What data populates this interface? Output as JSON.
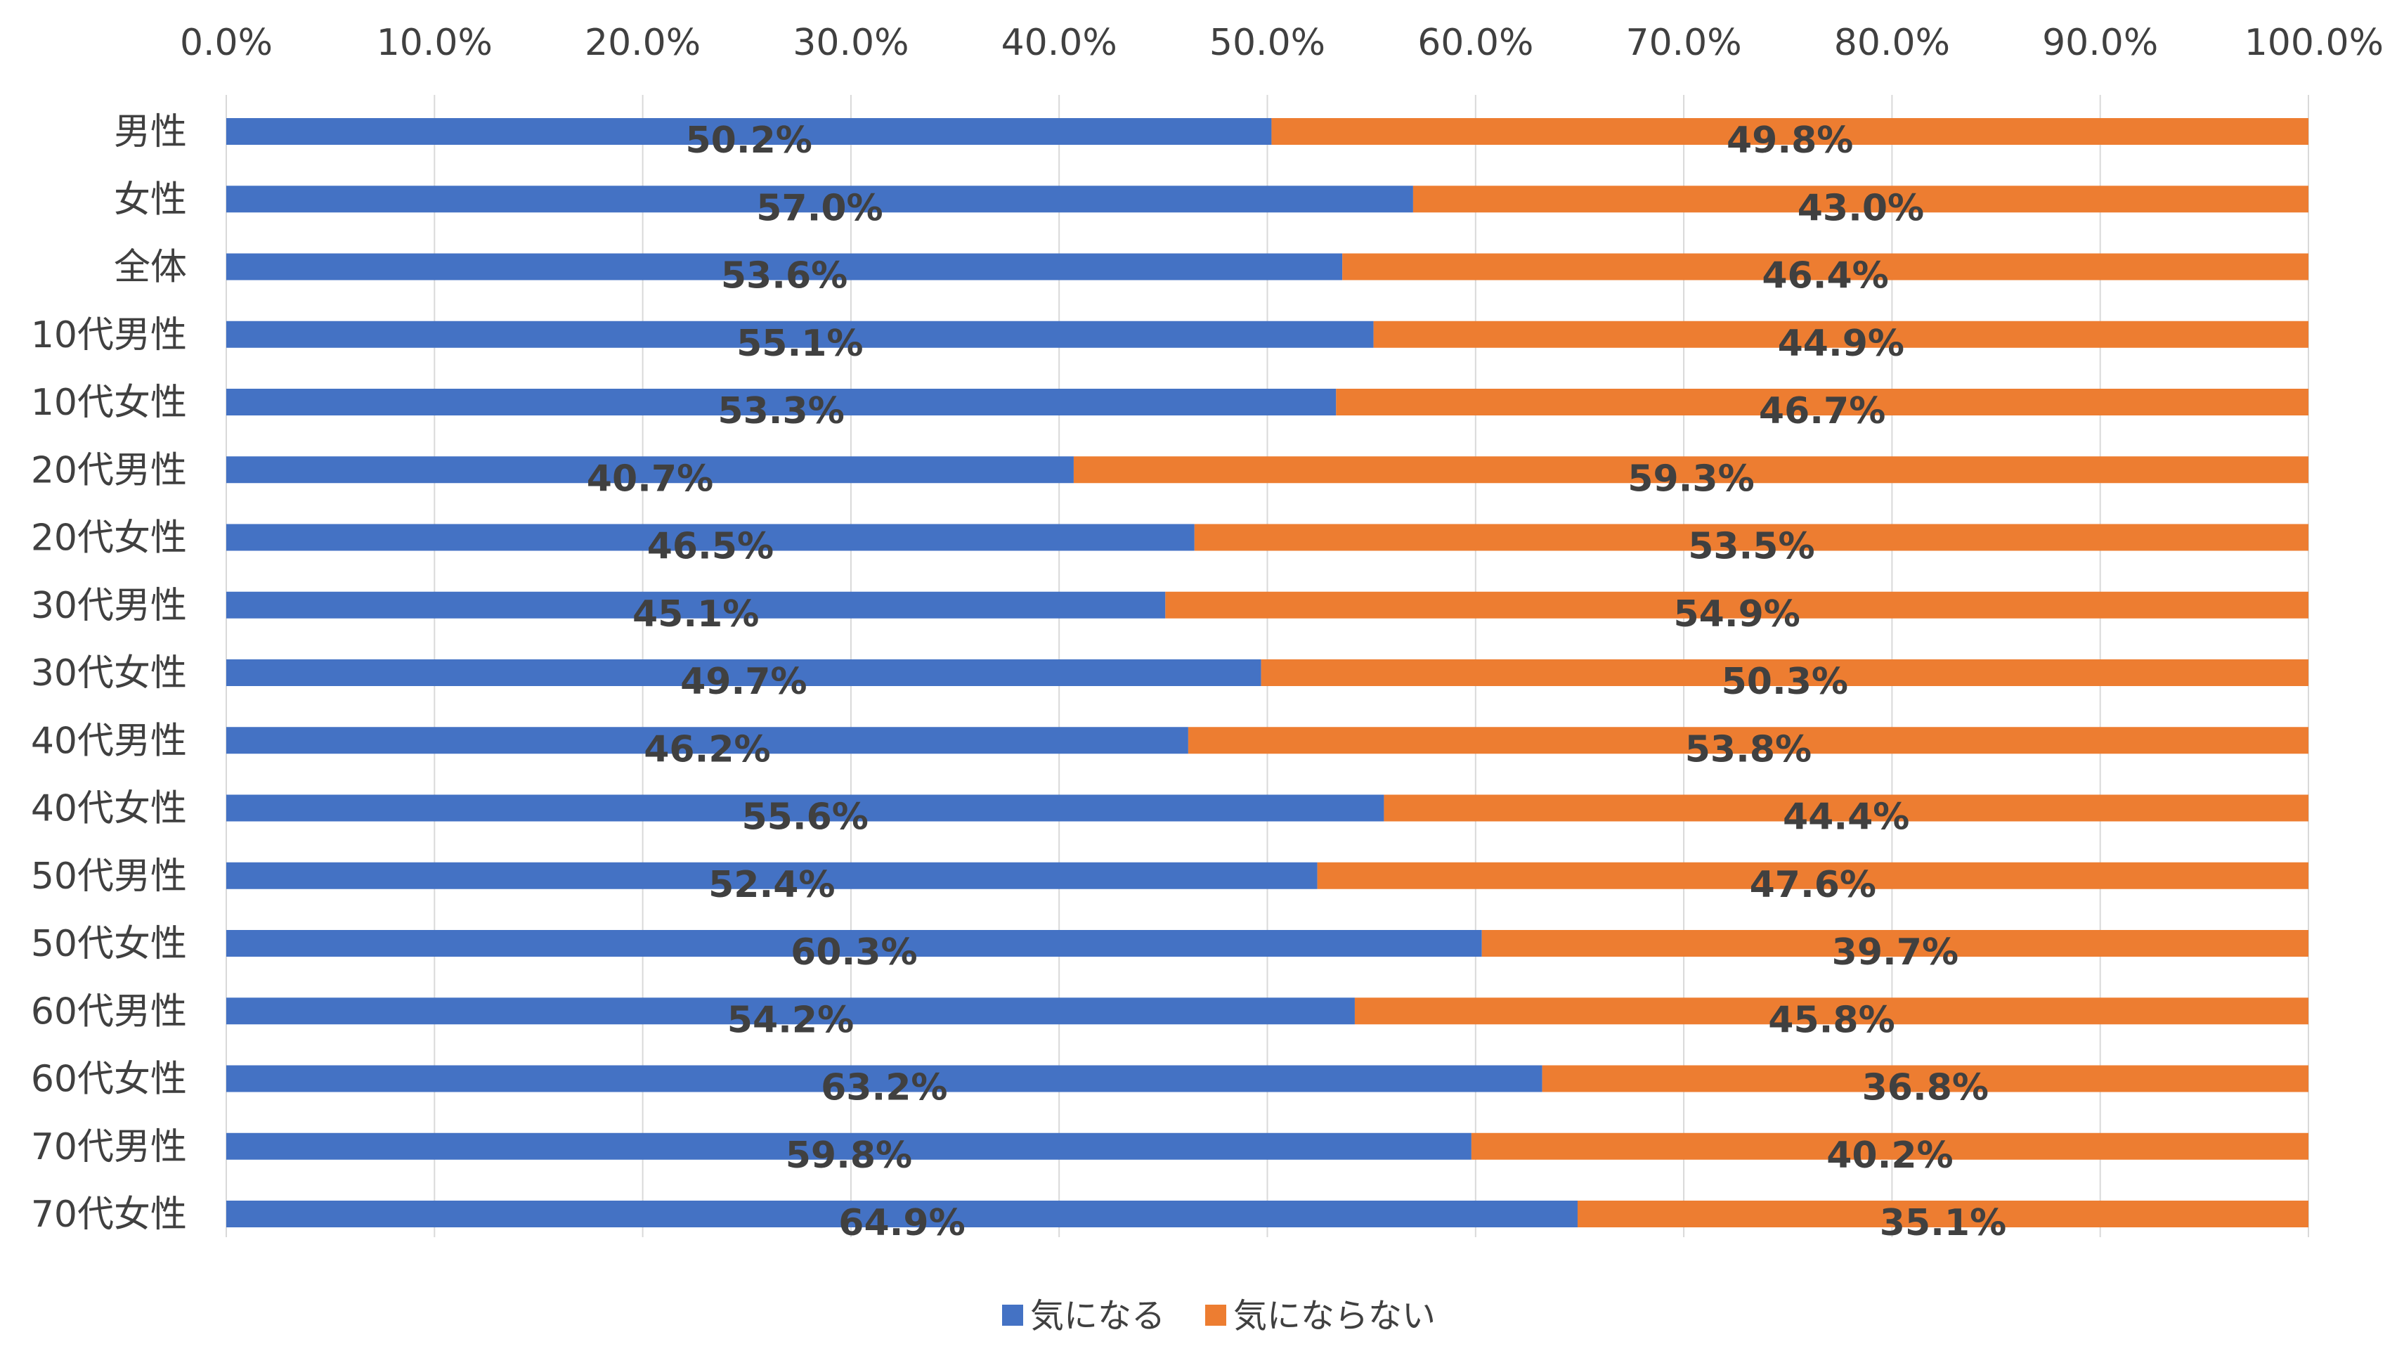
{
  "chart_data": {
    "type": "bar",
    "orientation": "horizontal",
    "stacked": "percent",
    "categories": [
      "男性",
      "女性",
      "全体",
      "10代男性",
      "10代女性",
      "20代男性",
      "20代女性",
      "30代男性",
      "30代女性",
      "40代男性",
      "40代女性",
      "50代男性",
      "50代女性",
      "60代男性",
      "60代女性",
      "70代男性",
      "70代女性"
    ],
    "series": [
      {
        "name": "気になる",
        "color": "#4472C4",
        "values": [
          50.2,
          57.0,
          53.6,
          55.1,
          53.3,
          40.7,
          46.5,
          45.1,
          49.7,
          46.2,
          55.6,
          52.4,
          60.3,
          54.2,
          63.2,
          59.8,
          64.9
        ],
        "labels": [
          "50.2%",
          "57.0%",
          "53.6%",
          "55.1%",
          "53.3%",
          "40.7%",
          "46.5%",
          "45.1%",
          "49.7%",
          "46.2%",
          "55.6%",
          "52.4%",
          "60.3%",
          "54.2%",
          "63.2%",
          "59.8%",
          "64.9%"
        ]
      },
      {
        "name": "気にならない",
        "color": "#ED7D31",
        "values": [
          49.8,
          43.0,
          46.4,
          44.9,
          46.7,
          59.3,
          53.5,
          54.9,
          50.3,
          53.8,
          44.4,
          47.6,
          39.7,
          45.8,
          36.8,
          40.2,
          35.1
        ],
        "labels": [
          "49.8%",
          "43.0%",
          "46.4%",
          "44.9%",
          "46.7%",
          "59.3%",
          "53.5%",
          "54.9%",
          "50.3%",
          "53.8%",
          "44.4%",
          "47.6%",
          "39.7%",
          "45.8%",
          "36.8%",
          "40.2%",
          "35.1%"
        ]
      }
    ],
    "x_ticks": [
      "0.0%",
      "10.0%",
      "20.0%",
      "30.0%",
      "40.0%",
      "50.0%",
      "60.0%",
      "70.0%",
      "80.0%",
      "90.0%",
      "100.0%"
    ],
    "xlim": [
      0,
      100
    ],
    "x_axis_position": "top",
    "grid": true,
    "legend_position": "bottom"
  }
}
